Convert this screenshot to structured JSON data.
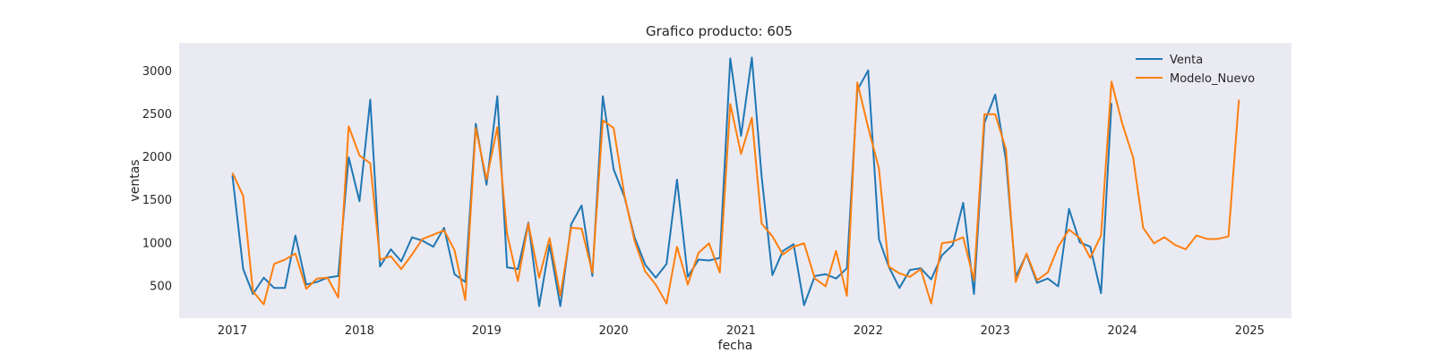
{
  "chart_data": {
    "type": "line",
    "title": "Grafico producto: 605",
    "xlabel": "fecha",
    "ylabel": "ventas",
    "x_domain": [
      "2016-08-01",
      "2025-05-01"
    ],
    "ylim": [
      120,
      3320
    ],
    "x_ticks": [
      {
        "date": "2017-01-01",
        "label": "2017"
      },
      {
        "date": "2018-01-01",
        "label": "2018"
      },
      {
        "date": "2019-01-01",
        "label": "2019"
      },
      {
        "date": "2020-01-01",
        "label": "2020"
      },
      {
        "date": "2021-01-01",
        "label": "2021"
      },
      {
        "date": "2022-01-01",
        "label": "2022"
      },
      {
        "date": "2023-01-01",
        "label": "2023"
      },
      {
        "date": "2024-01-01",
        "label": "2024"
      },
      {
        "date": "2025-01-01",
        "label": "2025"
      }
    ],
    "y_ticks": [
      500,
      1000,
      1500,
      2000,
      2500,
      3000
    ],
    "grid": false,
    "legend": "top-right",
    "background": "#EAEAF2",
    "series": [
      {
        "name": "Venta",
        "color": "#1F77B4",
        "start": "2017-01",
        "values": [
          1780,
          690,
          400,
          590,
          470,
          470,
          1080,
          510,
          540,
          590,
          610,
          1990,
          1480,
          2660,
          720,
          920,
          780,
          1060,
          1020,
          950,
          1170,
          630,
          540,
          2380,
          1670,
          2700,
          710,
          690,
          1230,
          260,
          970,
          260,
          1210,
          1430,
          610,
          2700,
          1850,
          1530,
          1060,
          740,
          590,
          750,
          1730,
          600,
          800,
          790,
          820,
          3140,
          2240,
          3150,
          1770,
          620,
          900,
          980,
          270,
          610,
          630,
          580,
          700,
          2770,
          3000,
          1040,
          720,
          470,
          680,
          700,
          570,
          850,
          970,
          1460,
          400,
          2390,
          2720,
          1950,
          600,
          860,
          530,
          580,
          490,
          1390,
          1000,
          950,
          410,
          2620
        ]
      },
      {
        "name": "Modelo_Nuevo",
        "color": "#FF7F0E",
        "start": "2017-01",
        "values": [
          1810,
          1540,
          430,
          280,
          750,
          800,
          870,
          460,
          580,
          590,
          360,
          2350,
          2010,
          1920,
          800,
          840,
          690,
          860,
          1040,
          1090,
          1140,
          910,
          330,
          2330,
          1730,
          2340,
          1100,
          550,
          1220,
          590,
          1050,
          380,
          1170,
          1160,
          650,
          2420,
          2330,
          1550,
          1020,
          660,
          510,
          290,
          950,
          510,
          880,
          990,
          650,
          2610,
          2030,
          2450,
          1220,
          1070,
          860,
          950,
          990,
          580,
          490,
          900,
          380,
          2860,
          2340,
          1860,
          720,
          640,
          600,
          690,
          290,
          990,
          1010,
          1060,
          560,
          2490,
          2490,
          2080,
          540,
          870,
          560,
          650,
          950,
          1150,
          1050,
          820,
          1080,
          2870,
          2380,
          1990,
          1170,
          990,
          1060,
          970,
          920,
          1080,
          1040,
          1040,
          1070,
          2660
        ]
      }
    ]
  }
}
